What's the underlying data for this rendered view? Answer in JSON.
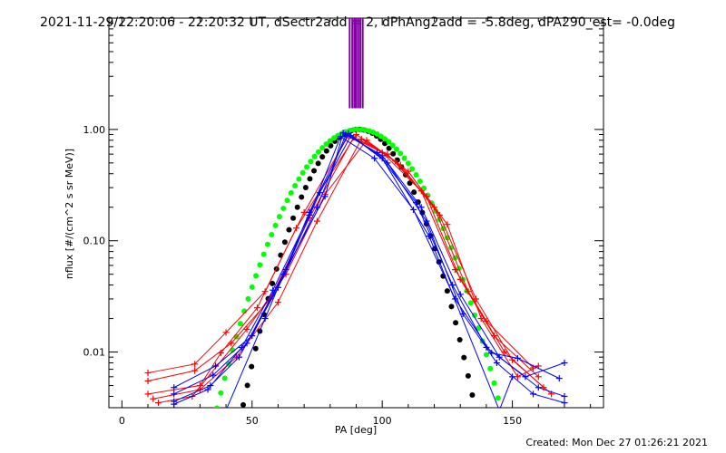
{
  "chart_data": {
    "type": "line",
    "title": "2021-11-29/22:20:06 - 22:20:32 UT, dSectr2add = 2, dPhAng2add = -5.8deg, dPA290_est= -0.0deg",
    "xlabel": "PA [deg]",
    "ylabel": "nflux [#/(cm^2 s sr MeV)]",
    "xlim": [
      -5,
      185
    ],
    "ylim_log10": [
      -2.5,
      1.0
    ],
    "y_scale": "log",
    "x_ticks": [
      0,
      50,
      100,
      150
    ],
    "x_tick_labels": [
      "0",
      "50",
      "100",
      "150"
    ],
    "y_ticks": [
      0.01,
      0.1,
      1.0
    ],
    "y_tick_labels": [
      "0.01",
      "0.10",
      "1.00"
    ],
    "vertical_marker_lines": [
      {
        "x": 87.5,
        "color": "#8000a0"
      },
      {
        "x": 88.5,
        "color": "#8000a0"
      },
      {
        "x": 89.3,
        "color": "#8000a0"
      },
      {
        "x": 90.0,
        "color": "#8000a0"
      },
      {
        "x": 90.8,
        "color": "#8000a0"
      },
      {
        "x": 91.6,
        "color": "#8000a0"
      },
      {
        "x": 92.5,
        "color": "#8000a0"
      }
    ],
    "series": [
      {
        "name": "red-1",
        "color": "#ff0000",
        "marker": "plus",
        "x": [
          10,
          28,
          40,
          55,
          70,
          87,
          100,
          115,
          128,
          140,
          158
        ],
        "y": [
          0.0065,
          0.0078,
          0.015,
          0.035,
          0.18,
          0.88,
          0.62,
          0.28,
          0.055,
          0.019,
          0.0072
        ]
      },
      {
        "name": "red-2",
        "color": "#ff0000",
        "marker": "plus",
        "x": [
          10,
          28,
          42,
          57,
          72,
          89,
          102,
          117,
          130,
          143,
          160
        ],
        "y": [
          0.0055,
          0.0068,
          0.012,
          0.03,
          0.16,
          0.85,
          0.6,
          0.25,
          0.045,
          0.014,
          0.006
        ]
      },
      {
        "name": "red-3",
        "color": "#ff0000",
        "marker": "plus",
        "x": [
          10,
          30,
          38,
          52,
          67,
          90,
          105,
          120,
          133,
          147,
          162
        ],
        "y": [
          0.0042,
          0.005,
          0.0098,
          0.025,
          0.13,
          0.9,
          0.52,
          0.2,
          0.035,
          0.01,
          0.0048
        ]
      },
      {
        "name": "red-4",
        "color": "#ff0000",
        "marker": "plus",
        "x": [
          12,
          30,
          44,
          60,
          75,
          92,
          107,
          122,
          136,
          150,
          165
        ],
        "y": [
          0.0038,
          0.0046,
          0.009,
          0.028,
          0.15,
          0.82,
          0.48,
          0.17,
          0.03,
          0.0085,
          0.0042
        ]
      },
      {
        "name": "red-5",
        "color": "#ff0000",
        "marker": "plus",
        "x": [
          14,
          27,
          48,
          63,
          78,
          94,
          110,
          125,
          138,
          152,
          160
        ],
        "y": [
          0.0035,
          0.004,
          0.016,
          0.05,
          0.26,
          0.8,
          0.42,
          0.14,
          0.02,
          0.006,
          0.0075
        ]
      },
      {
        "name": "blue-1",
        "color": "#0000ff",
        "marker": "plus",
        "x": [
          20,
          35,
          48,
          62,
          78,
          85,
          98,
          113,
          127,
          140,
          155,
          170
        ],
        "y": [
          0.0042,
          0.0062,
          0.012,
          0.05,
          0.25,
          0.93,
          0.62,
          0.22,
          0.04,
          0.011,
          0.006,
          0.008
        ]
      },
      {
        "name": "blue-2",
        "color": "#0000ff",
        "marker": "plus",
        "x": [
          20,
          34,
          45,
          60,
          75,
          86,
          100,
          115,
          130,
          145,
          160,
          170
        ],
        "y": [
          0.0036,
          0.005,
          0.009,
          0.038,
          0.2,
          0.9,
          0.58,
          0.2,
          0.033,
          0.009,
          0.0048,
          0.004
        ]
      },
      {
        "name": "blue-3",
        "color": "#0000ff",
        "marker": "plus",
        "x": [
          20,
          33,
          46,
          58,
          72,
          84,
          97,
          112,
          128,
          142,
          152,
          168
        ],
        "y": [
          0.0034,
          0.0046,
          0.011,
          0.036,
          0.17,
          0.86,
          0.55,
          0.19,
          0.03,
          0.0098,
          0.0088,
          0.0058
        ]
      },
      {
        "name": "blue-4",
        "color": "#0000ff",
        "marker": "plus",
        "x": [
          20,
          36,
          50,
          63,
          76,
          88,
          102,
          117,
          131,
          144,
          158,
          170
        ],
        "y": [
          0.0048,
          0.0075,
          0.014,
          0.055,
          0.27,
          0.88,
          0.5,
          0.15,
          0.022,
          0.008,
          0.0042,
          0.0035
        ]
      },
      {
        "name": "blue-5",
        "color": "#0000ff",
        "marker": "plus",
        "x": [
          40,
          55,
          72,
          87,
          100,
          118,
          145,
          150
        ],
        "y": [
          0.003,
          0.02,
          0.18,
          0.92,
          0.55,
          0.11,
          0.003,
          0.006
        ]
      },
      {
        "name": "black-model",
        "color": "#000000",
        "marker": "dot",
        "function": "exp(-((x-91)/18.6)^2)",
        "x_range": [
          5,
          176
        ],
        "step": 1.6
      },
      {
        "name": "green-model",
        "color": "#00ff00",
        "marker": "dot",
        "function": "exp(-((x-91)/22.7)^2)",
        "x_range": [
          5,
          176
        ],
        "step": 1.5
      }
    ]
  },
  "footer": {
    "created": "Created: Mon Dec 27 01:26:21 2021"
  }
}
